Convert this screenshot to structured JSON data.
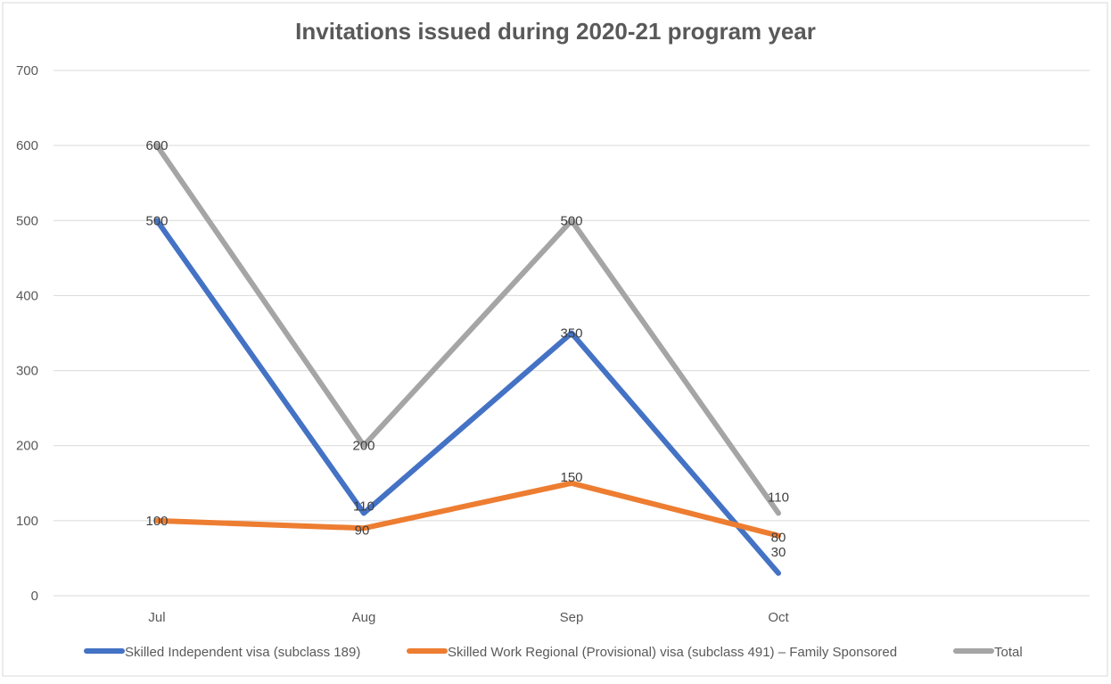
{
  "chart_data": {
    "type": "line",
    "title": "Invitations issued during 2020-21 program year",
    "xlabel": "",
    "ylabel": "",
    "categories": [
      "Jul",
      "Aug",
      "Sep",
      "Oct"
    ],
    "ylim": [
      0,
      700
    ],
    "yticks": [
      "0",
      "100",
      "200",
      "300",
      "400",
      "500",
      "600",
      "700"
    ],
    "grid": true,
    "legend_position": "bottom",
    "series": [
      {
        "name": "Skilled Independent visa (subclass 189)",
        "color": "#4472C4",
        "values": [
          500,
          110,
          350,
          30
        ],
        "labels": [
          "500",
          "110",
          "350",
          "30"
        ]
      },
      {
        "name": "Skilled Work Regional (Provisional) visa (subclass 491) – Family Sponsored",
        "color": "#ED7D31",
        "values": [
          100,
          90,
          150,
          80
        ],
        "labels": [
          "100",
          "90",
          "150",
          "80"
        ]
      },
      {
        "name": "Total",
        "color": "#A5A5A5",
        "values": [
          600,
          200,
          500,
          110
        ],
        "labels": [
          "600",
          "200",
          "500",
          "110"
        ]
      }
    ]
  }
}
